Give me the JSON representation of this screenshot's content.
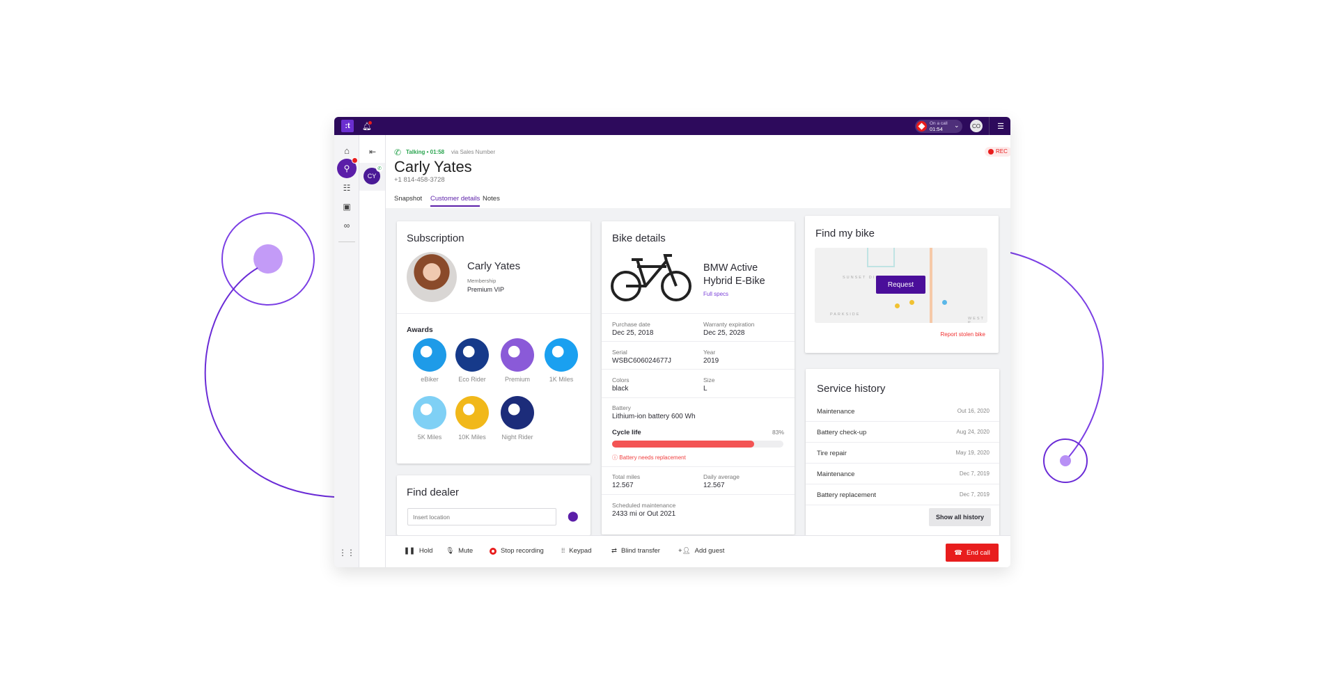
{
  "topbar": {
    "logo": ":t",
    "call_pill_label": "On a call",
    "call_pill_time": "01:54",
    "user_initials": "CO"
  },
  "sidebar": {
    "items": [
      "home",
      "contacts-activity",
      "queues",
      "directory",
      "voicemail",
      "apps"
    ]
  },
  "conversation": {
    "avatar_initials": "CY"
  },
  "header": {
    "status": "Talking • 01:58",
    "via": "via Sales Number",
    "name": "Carly Yates",
    "phone": "+1 814-458-3728",
    "rec": "REC"
  },
  "tabs": [
    {
      "label": "Snapshot",
      "active": false
    },
    {
      "label": "Customer details",
      "active": true
    },
    {
      "label": "Notes",
      "active": false
    }
  ],
  "subscription": {
    "title": "Subscription",
    "name": "Carly Yates",
    "membership_label": "Membership",
    "membership": "Premium VIP",
    "awards_title": "Awards",
    "awards": [
      {
        "label": "eBiker",
        "color": "#1e9be8"
      },
      {
        "label": "Eco Rider",
        "color": "#163a8a"
      },
      {
        "label": "Premium",
        "color": "#8a5ad8"
      },
      {
        "label": "1K Miles",
        "color": "#1aa0f0"
      },
      {
        "label": "5K Miles",
        "color": "#7fd0f5"
      },
      {
        "label": "10K Miles",
        "color": "#f1b81a"
      },
      {
        "label": "Night Rider",
        "color": "#1c2c7a"
      }
    ]
  },
  "dealer": {
    "title": "Find dealer",
    "placeholder": "Insert location"
  },
  "bike": {
    "title": "Bike details",
    "model_line1": "BMW Active",
    "model_line2": "Hybrid E-Bike",
    "full_specs": "Full specs",
    "fields": [
      [
        {
          "label": "Purchase date",
          "value": "Dec 25, 2018"
        },
        {
          "label": "Warranty expiration",
          "value": "Dec 25, 2028"
        }
      ],
      [
        {
          "label": "Serial",
          "value": "WSBC606024677J"
        },
        {
          "label": "Year",
          "value": "2019"
        }
      ],
      [
        {
          "label": "Colors",
          "value": "black"
        },
        {
          "label": "Size",
          "value": "L"
        }
      ]
    ],
    "battery_label": "Battery",
    "battery": "Lithium-ion battery 600 Wh",
    "cycle_label": "Cycle life",
    "cycle_pct_text": "83%",
    "cycle_pct": 83,
    "warning": "Battery needs replacement",
    "miles": [
      {
        "label": "Total miles",
        "value": "12.567"
      },
      {
        "label": "Daily average",
        "value": "12.567"
      }
    ],
    "maintenance_label": "Scheduled maintenance",
    "maintenance": "2433 mi or Out 2021"
  },
  "findbike": {
    "title": "Find my bike",
    "request": "Request",
    "report": "Report stolen bike",
    "map_labels": [
      "SUNSET DIST",
      "PARKSIDE",
      "WEST P"
    ]
  },
  "service": {
    "title": "Service history",
    "rows": [
      {
        "name": "Maintenance",
        "date": "Out 16, 2020"
      },
      {
        "name": "Battery check-up",
        "date": "Aug 24, 2020"
      },
      {
        "name": "Tire repair",
        "date": "May 19, 2020"
      },
      {
        "name": "Maintenance",
        "date": "Dec 7, 2019"
      },
      {
        "name": "Battery replacement",
        "date": "Dec 7, 2019"
      }
    ],
    "show_all": "Show all history"
  },
  "controls": {
    "hold": "Hold",
    "mute": "Mute",
    "stop_recording": "Stop recording",
    "keypad": "Keypad",
    "blind_transfer": "Blind transfer",
    "add_guest": "Add guest",
    "end_call": "End call"
  },
  "colors": {
    "brand": "#2d0a5c",
    "accent": "#5b1ea8",
    "danger": "#e81d1d",
    "talking": "#2aa44f",
    "decor": "#7b3fe4"
  }
}
